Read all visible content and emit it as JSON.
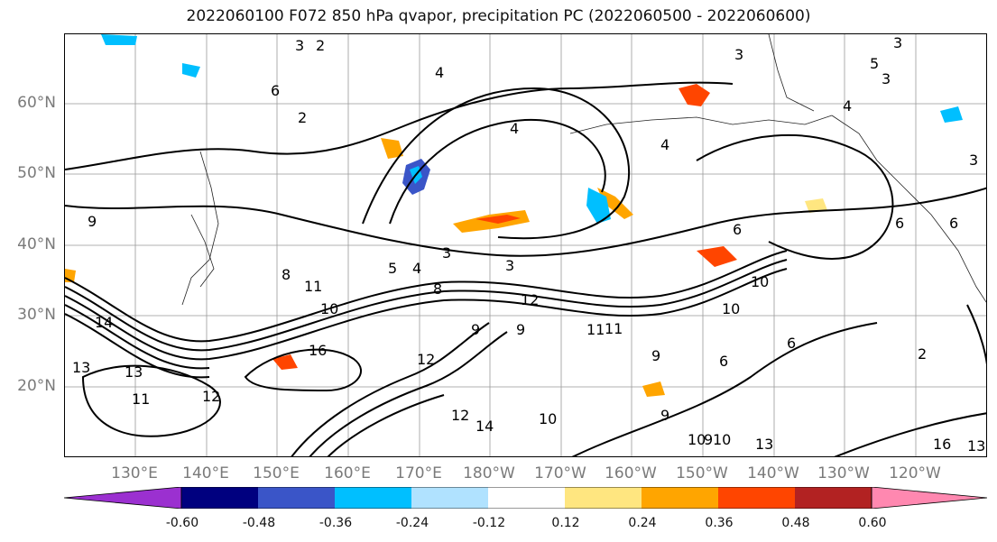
{
  "title": "2022060100 F072 850 hPa qvapor, precipitation PC (2022060500 - 2022060600)",
  "lat_labels": [
    "60°N",
    "50°N",
    "40°N",
    "30°N",
    "20°N"
  ],
  "lon_labels": [
    "130°E",
    "140°E",
    "150°E",
    "160°E",
    "170°E",
    "180°W",
    "170°W",
    "160°W",
    "150°W",
    "140°W",
    "130°W",
    "120°W"
  ],
  "colorbar": {
    "ticks": [
      "-0.60",
      "-0.48",
      "-0.36",
      "-0.24",
      "-0.12",
      "0.12",
      "0.24",
      "0.36",
      "0.48",
      "0.60"
    ],
    "colors": [
      "#9b30d0",
      "#00007f",
      "#3a55c8",
      "#00bfff",
      "#b0e2ff",
      "#ffffff",
      "#ffe680",
      "#ffa500",
      "#ff4500",
      "#b22222",
      "#ff88b0"
    ]
  },
  "contour_labels": [
    "3",
    "2",
    "3",
    "3",
    "5",
    "3",
    "4",
    "6",
    "4",
    "5",
    "4",
    "3",
    "2",
    "4",
    "3",
    "6",
    "3",
    "4",
    "6",
    "6",
    "9",
    "8",
    "8",
    "11",
    "12",
    "10",
    "10",
    "11",
    "10",
    "11",
    "9",
    "9",
    "14",
    "13",
    "13",
    "11",
    "12",
    "16",
    "12",
    "12",
    "14",
    "10",
    "9",
    "9",
    "10",
    "9",
    "10",
    "13",
    "13",
    "2",
    "6",
    "6",
    "16"
  ]
}
